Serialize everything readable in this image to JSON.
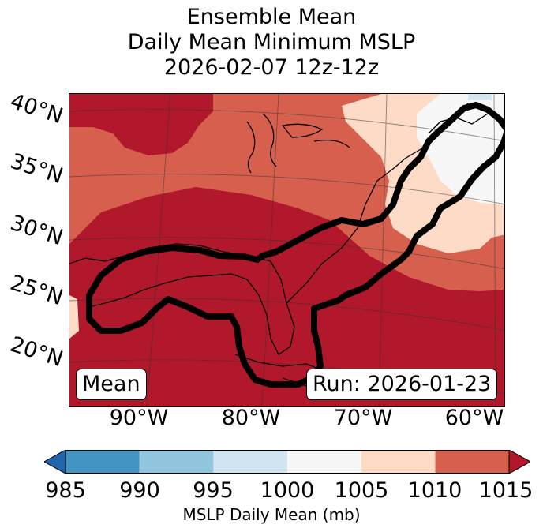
{
  "title_lines": [
    "Ensemble Mean",
    "Daily Mean Minimum MSLP",
    "2026-02-07 12z-12z"
  ],
  "lat_labels": [
    "40°N",
    "35°N",
    "30°N",
    "25°N",
    "20°N"
  ],
  "lon_labels": [
    "90°W",
    "80°W",
    "70°W",
    "60°W"
  ],
  "badges": {
    "left": "Mean",
    "right": "Run: 2026-01-23"
  },
  "colorbar": {
    "ticks": [
      "985",
      "990",
      "995",
      "1000",
      "1005",
      "1010",
      "1015"
    ],
    "label": "MSLP Daily Mean (mb)",
    "colors": [
      "#2166ac",
      "#4393c3",
      "#92c5de",
      "#d1e5f0",
      "#f7f7f7",
      "#fddbc7",
      "#d6604d",
      "#b2182b"
    ]
  },
  "fill_colors": {
    "1010_1015": "#d6604d",
    "above_1015": "#b2182b",
    "1005_1010": "#fddbc7",
    "1000_1005": "#f7f7f7",
    "995_1000": "#d1e5f0"
  }
}
